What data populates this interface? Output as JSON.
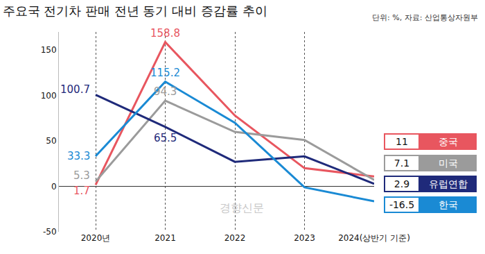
{
  "chart_data": {
    "type": "line",
    "title": "주요국 전기차 판매 전년 동기 대비 증감률 추이",
    "subtitle": "단위: %, 자료: 산업통상자원부",
    "watermark": "경향신문",
    "categories": [
      "2020년",
      "2021",
      "2022",
      "2023",
      "2024(상반기 기준)"
    ],
    "series": [
      {
        "name": "중국",
        "color": "#e8565f",
        "values": [
          1.7,
          158.8,
          78,
          20,
          11
        ],
        "value_labels": [
          "1.7",
          "158.8",
          null,
          null,
          "11"
        ]
      },
      {
        "name": "미국",
        "color": "#9b9b9b",
        "values": [
          5.3,
          94.3,
          60,
          51,
          7.1
        ],
        "value_labels": [
          "5.3",
          "94.3",
          null,
          null,
          "7.1"
        ]
      },
      {
        "name": "유럽연합",
        "color": "#1f2a7a",
        "values": [
          100.7,
          65.5,
          27,
          33,
          2.9
        ],
        "value_labels": [
          "100.7",
          "65.5",
          null,
          null,
          "2.9"
        ]
      },
      {
        "name": "한국",
        "color": "#1a8ad4",
        "values": [
          33.3,
          115.2,
          70,
          -1,
          -16.5
        ],
        "value_labels": [
          "33.3",
          "115.2",
          null,
          null,
          "-16.5"
        ]
      }
    ],
    "ylim": [
      -50,
      170
    ],
    "yticks": [
      -50,
      0,
      50,
      100,
      150
    ],
    "grid": true
  }
}
